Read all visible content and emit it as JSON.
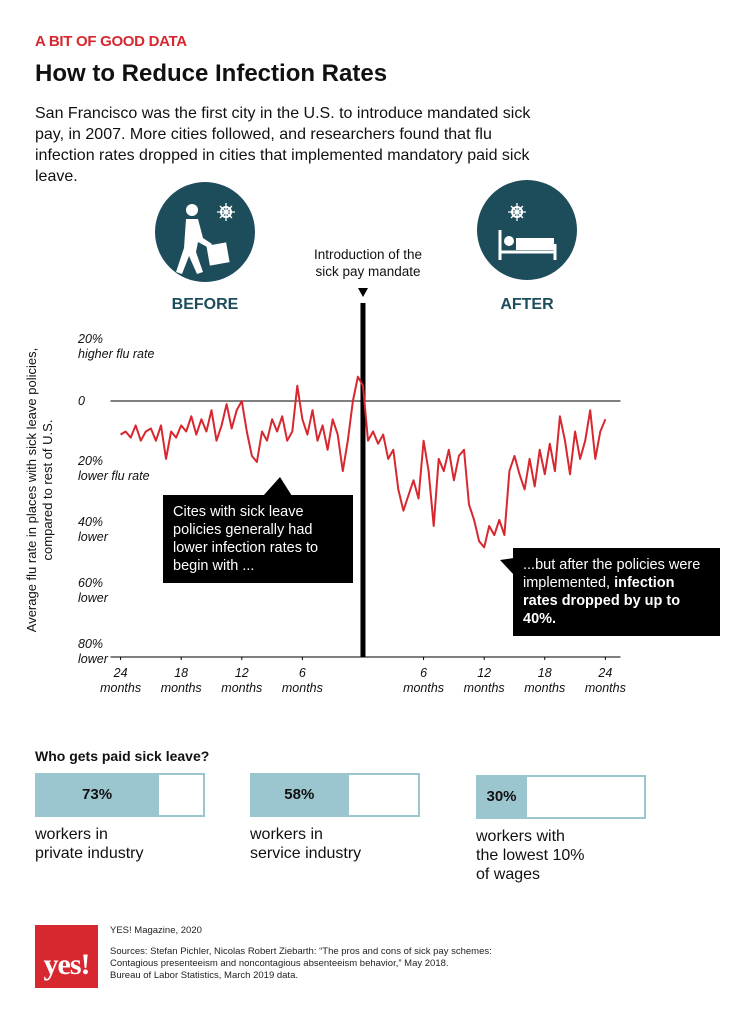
{
  "header": {
    "kicker": "A BIT OF GOOD DATA",
    "title": "How to Reduce Infection Rates",
    "subtitle": "San Francisco was the first city in the U.S. to introduce mandated sick pay, in 2007. More cities followed, and researchers found that flu infection rates dropped in cities that implemented mandatory paid sick leave."
  },
  "chart_data": [
    {
      "type": "line",
      "before_label": "BEFORE",
      "after_label": "AFTER",
      "mandate_label": "Introduction of the\nsick pay mandate",
      "y_label": "Average flu rate in places with sick leave policies, compared to rest of U.S.",
      "annotations": [
        "Cites with sick leave policies generally had lower infection rates to begin with ...",
        "...but after the policies were implemented,",
        "infection rates dropped by up to 40%."
      ],
      "x": [
        -24,
        -23.5,
        -23,
        -22.5,
        -22,
        -21.5,
        -21,
        -20.5,
        -20,
        -19.5,
        -19,
        -18.5,
        -18,
        -17.5,
        -17,
        -16.5,
        -16,
        -15.5,
        -15,
        -14.5,
        -14,
        -13.5,
        -13,
        -12.5,
        -12,
        -11.5,
        -11,
        -10.5,
        -10,
        -9.5,
        -9,
        -8.5,
        -8,
        -7.5,
        -7,
        -6.5,
        -6,
        -5.5,
        -5,
        -4.5,
        -4,
        -3.5,
        -3,
        -2.5,
        -2,
        -1.5,
        -1,
        -0.5,
        0,
        0.5,
        1,
        1.5,
        2,
        2.5,
        3,
        3.5,
        4,
        4.5,
        5,
        5.5,
        6,
        6.5,
        7,
        7.5,
        8,
        8.5,
        9,
        9.5,
        10,
        10.5,
        11,
        11.5,
        12,
        12.5,
        13,
        13.5,
        14,
        14.5,
        15,
        15.5,
        16,
        16.5,
        17,
        17.5,
        18,
        18.5,
        19,
        19.5,
        20,
        20.5,
        21,
        21.5,
        22,
        22.5,
        23,
        23.5,
        24
      ],
      "series": [
        {
          "color": "#d7282f",
          "values": [
            -11,
            -10,
            -12,
            -8,
            -13,
            -10,
            -9,
            -13,
            -8,
            -19,
            -10,
            -12,
            -8,
            -10,
            -5,
            -11,
            -6,
            -10,
            -3,
            -13,
            -8,
            -1,
            -9,
            -3,
            0,
            -10,
            -18,
            -20,
            -10,
            -13,
            -6,
            -10,
            -5,
            -13,
            -10,
            5,
            -6,
            -11,
            -3,
            -13,
            -8,
            -16,
            -6,
            -11,
            -23,
            -13,
            0,
            8,
            5,
            -13,
            -10,
            -14,
            -11,
            -19,
            -16,
            -29,
            -36,
            -31,
            -26,
            -32,
            -13,
            -23,
            -41,
            -19,
            -23,
            -16,
            -26,
            -18,
            -16,
            -34,
            -39,
            -46,
            -48,
            -41,
            -44,
            -39,
            -44,
            -23,
            -18,
            -24,
            -29,
            -19,
            -28,
            -16,
            -24,
            -14,
            -23,
            -5,
            -13,
            -24,
            -10,
            -19,
            -13,
            -3,
            -19,
            -10,
            -6
          ]
        }
      ],
      "xlim": [
        -25,
        25.5
      ],
      "xticks": [
        {
          "value": -24,
          "label": "24\nmonths"
        },
        {
          "value": -18,
          "label": "18\nmonths"
        },
        {
          "value": -12,
          "label": "12\nmonths"
        },
        {
          "value": -6,
          "label": "6\nmonths"
        },
        {
          "value": 6,
          "label": "6\nmonths"
        },
        {
          "value": 12,
          "label": "12\nmonths"
        },
        {
          "value": 18,
          "label": "18\nmonths"
        },
        {
          "value": 24,
          "label": "24\nmonths"
        }
      ],
      "ylim": [
        -84,
        22
      ],
      "yticks": [
        {
          "value": 20,
          "label": "20%\nhigher flu rate"
        },
        0,
        {
          "value": -20,
          "label": "20%\nlower flu rate"
        },
        {
          "value": -40,
          "label": "40%\nlower"
        },
        {
          "value": -60,
          "label": "60%\nlower"
        },
        {
          "value": -80,
          "label": "80%\nlower"
        }
      ]
    },
    {
      "type": "bar",
      "title": "Who gets paid sick leave?",
      "categories": [
        "workers in\nprivate industry",
        "workers in\nservice industry",
        "workers with\nthe lowest 10%\nof wages"
      ],
      "values": [
        73,
        58,
        30
      ],
      "value_labels": [
        "73%",
        "58%",
        "30%"
      ],
      "color": "#9cc6cf",
      "xlim": [
        0,
        100
      ]
    }
  ],
  "footer": {
    "logo": "yes!",
    "credit": "YES! Magazine, 2020",
    "sources": "Sources: Stefan Pichler, Nicolas Robert Ziebarth: “The pros and cons of sick pay schemes: Contagious presenteeism and noncontagious absenteeism behavior,” May 2018.\nBureau of Labor Statistics, March 2019 data."
  }
}
